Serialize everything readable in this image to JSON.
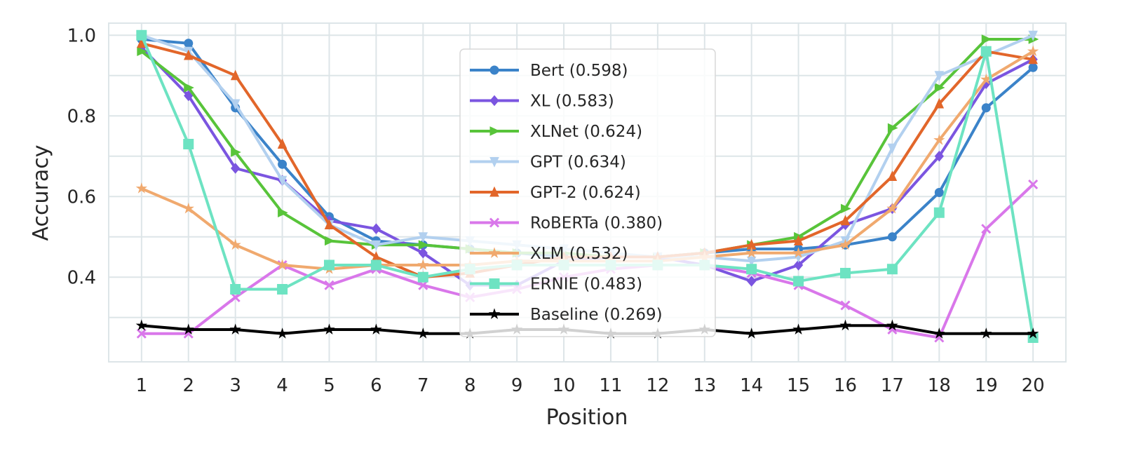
{
  "chart_data": {
    "type": "line",
    "title": "",
    "xlabel": "Position",
    "ylabel": "Accuracy",
    "x": [
      1,
      2,
      3,
      4,
      5,
      6,
      7,
      8,
      9,
      10,
      11,
      12,
      13,
      14,
      15,
      16,
      17,
      18,
      19,
      20
    ],
    "xlim": [
      0.3,
      20.7
    ],
    "ylim": [
      0.19,
      1.03
    ],
    "yticks": [
      "0.4",
      "0.6",
      "0.8",
      "1.0"
    ],
    "ytick_values": [
      0.4,
      0.6,
      0.8,
      1.0
    ],
    "grid": true,
    "legend_position": "upper-center",
    "series": [
      {
        "name": "Bert (0.598)",
        "color": "#3b83c9",
        "marker": "circle",
        "values": [
          0.99,
          0.98,
          0.82,
          0.68,
          0.55,
          0.49,
          0.48,
          0.47,
          0.46,
          0.45,
          0.45,
          0.45,
          0.46,
          0.47,
          0.47,
          0.48,
          0.5,
          0.61,
          0.82,
          0.92
        ]
      },
      {
        "name": "XL (0.583)",
        "color": "#7b55e0",
        "marker": "diamond",
        "values": [
          0.97,
          0.85,
          0.67,
          0.64,
          0.54,
          0.52,
          0.46,
          0.38,
          0.38,
          0.44,
          0.45,
          0.45,
          0.43,
          0.39,
          0.43,
          0.53,
          0.57,
          0.7,
          0.88,
          0.94
        ]
      },
      {
        "name": "XLNet (0.624)",
        "color": "#58c43a",
        "marker": "triangle-right",
        "values": [
          0.96,
          0.87,
          0.71,
          0.56,
          0.49,
          0.48,
          0.48,
          0.47,
          0.46,
          0.46,
          0.45,
          0.45,
          0.46,
          0.48,
          0.5,
          0.57,
          0.77,
          0.87,
          0.99,
          0.99
        ]
      },
      {
        "name": "GPT (0.634)",
        "color": "#b2d0ef",
        "marker": "triangle-down",
        "values": [
          1.0,
          0.96,
          0.83,
          0.64,
          0.53,
          0.48,
          0.5,
          0.49,
          0.48,
          0.47,
          0.46,
          0.45,
          0.45,
          0.44,
          0.45,
          0.49,
          0.72,
          0.9,
          0.95,
          1.0
        ]
      },
      {
        "name": "GPT-2 (0.624)",
        "color": "#e2662a",
        "marker": "triangle-up",
        "values": [
          0.98,
          0.95,
          0.9,
          0.73,
          0.53,
          0.45,
          0.4,
          0.41,
          0.43,
          0.45,
          0.45,
          0.45,
          0.46,
          0.48,
          0.49,
          0.54,
          0.65,
          0.83,
          0.96,
          0.94
        ]
      },
      {
        "name": "RoBERTa (0.380)",
        "color": "#d977ea",
        "marker": "x",
        "values": [
          0.26,
          0.26,
          0.35,
          0.43,
          0.38,
          0.42,
          0.38,
          0.35,
          0.37,
          0.4,
          0.42,
          0.43,
          0.43,
          0.41,
          0.38,
          0.33,
          0.27,
          0.25,
          0.52,
          0.63
        ]
      },
      {
        "name": "XLM (0.532)",
        "color": "#f0a96e",
        "marker": "star",
        "values": [
          0.62,
          0.57,
          0.48,
          0.43,
          0.42,
          0.43,
          0.43,
          0.43,
          0.44,
          0.44,
          0.44,
          0.44,
          0.45,
          0.46,
          0.46,
          0.48,
          0.57,
          0.74,
          0.89,
          0.96
        ]
      },
      {
        "name": "ERNIE (0.483)",
        "color": "#6de3c2",
        "marker": "square",
        "values": [
          1.0,
          0.73,
          0.37,
          0.37,
          0.43,
          0.43,
          0.4,
          0.42,
          0.43,
          0.43,
          0.43,
          0.43,
          0.43,
          0.42,
          0.39,
          0.41,
          0.42,
          0.56,
          0.96,
          0.25
        ]
      },
      {
        "name": "Baseline (0.269)",
        "color": "#000000",
        "marker": "star",
        "values": [
          0.28,
          0.27,
          0.27,
          0.26,
          0.27,
          0.27,
          0.26,
          0.26,
          0.27,
          0.27,
          0.26,
          0.26,
          0.27,
          0.26,
          0.27,
          0.28,
          0.28,
          0.26,
          0.26,
          0.26
        ]
      }
    ]
  }
}
